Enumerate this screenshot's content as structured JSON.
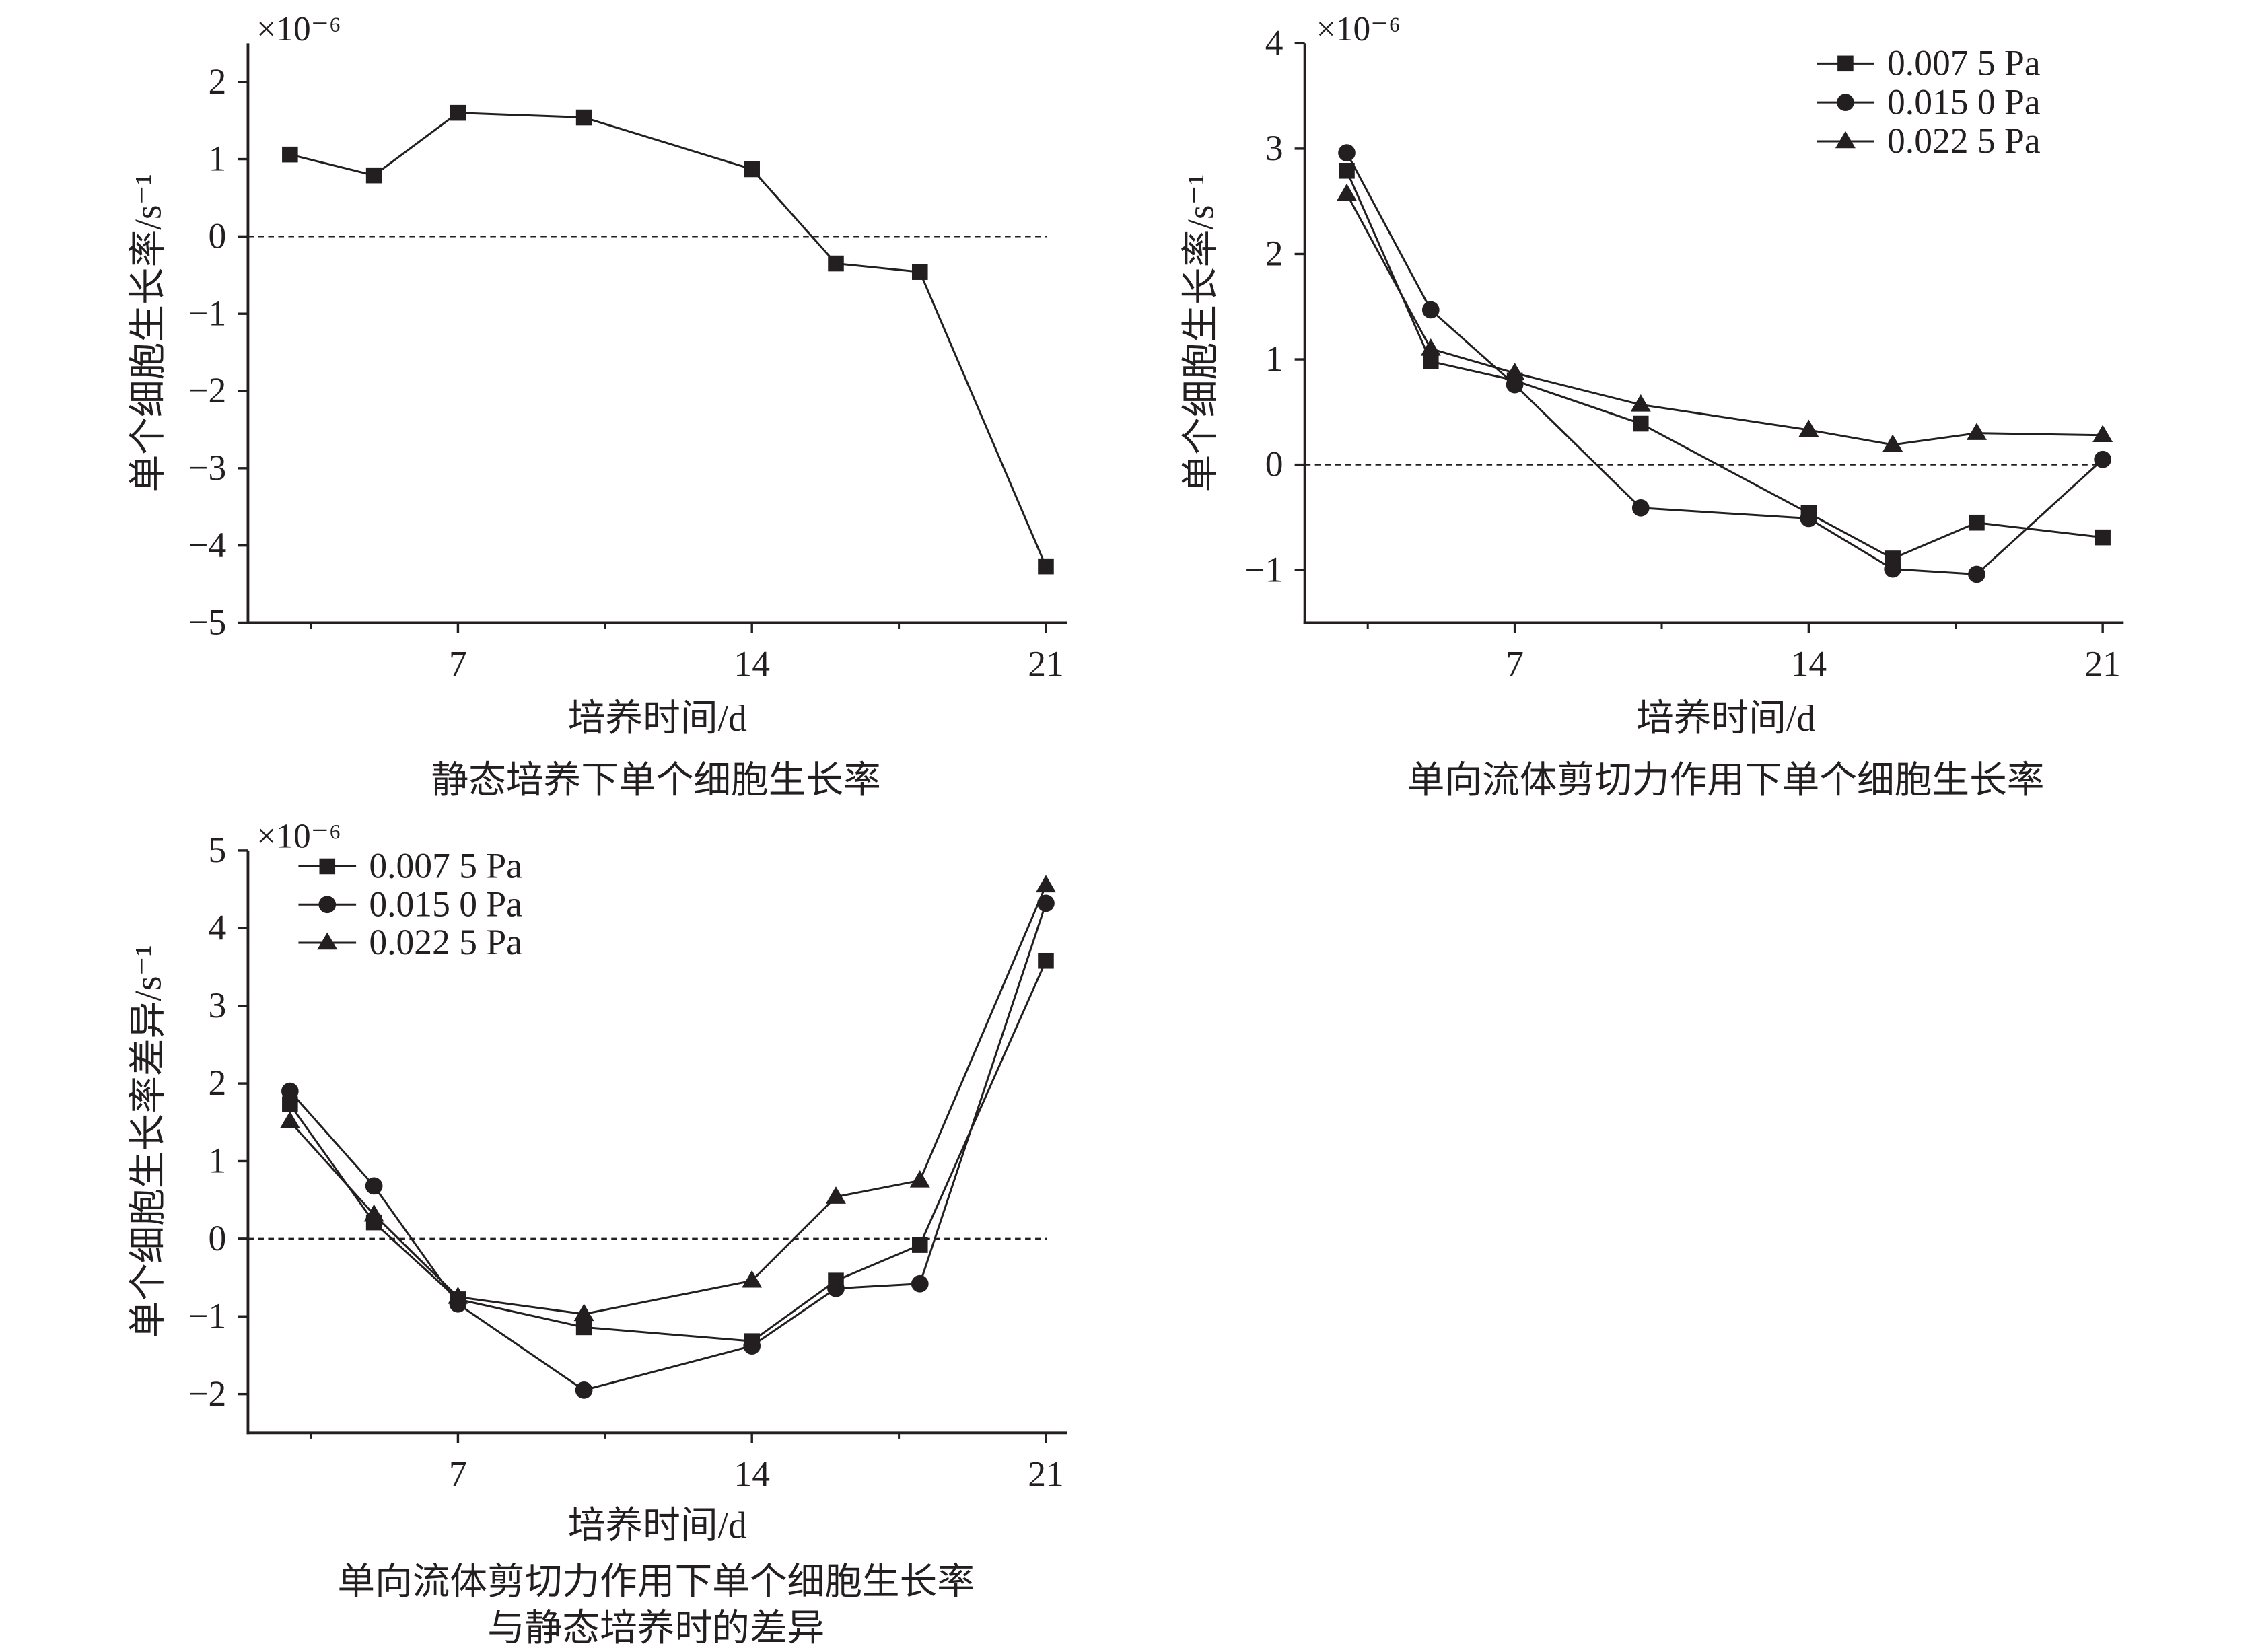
{
  "figure": {
    "ink_color": "#231f20",
    "background_color": "#ffffff"
  },
  "chart_data": [
    {
      "type": "line",
      "title": "静态培养下单个细胞生长率",
      "xlabel": "培养时间/d",
      "ylabel": "单个细胞生长率/s⁻¹",
      "y_multiplier": "×10⁻⁶",
      "xlim": [
        2,
        21.5
      ],
      "ylim": [
        -5,
        2.5
      ],
      "xticks": [
        7,
        14,
        21
      ],
      "x_minor_ticks": [
        3.5,
        10.5,
        17.5
      ],
      "yticks": [
        2,
        1,
        0,
        -1,
        -2,
        -3,
        -4,
        -5
      ],
      "ytick_labels": [
        "2",
        "1",
        "0",
        "−1",
        "−2",
        "−3",
        "−4",
        "−5"
      ],
      "reference_line_y": 0,
      "grid": false,
      "x": [
        3,
        5,
        7,
        10,
        14,
        16,
        18,
        21
      ],
      "series": [
        {
          "marker": "square",
          "values": [
            1.06,
            0.79,
            1.6,
            1.54,
            0.87,
            -0.35,
            -0.46,
            -4.27
          ]
        }
      ]
    },
    {
      "type": "line",
      "title": "单向流体剪切力作用下单个细胞生长率",
      "xlabel": "培养时间/d",
      "ylabel": "单个细胞生长率/s⁻¹",
      "y_multiplier": "×10⁻⁶",
      "xlim": [
        2,
        21.5
      ],
      "ylim": [
        -1.5,
        4
      ],
      "xticks": [
        7,
        14,
        21
      ],
      "x_minor_ticks": [
        3.5,
        10.5,
        17.5
      ],
      "yticks": [
        4,
        3,
        2,
        1,
        0,
        -1
      ],
      "ytick_labels": [
        "4",
        "3",
        "2",
        "1",
        "0",
        "−1"
      ],
      "reference_line_y": 0,
      "grid": false,
      "legend": "top-right",
      "x": [
        3,
        5,
        7,
        10,
        14,
        16,
        18,
        21
      ],
      "series": [
        {
          "name": "0.007 5 Pa",
          "marker": "square",
          "values": [
            2.79,
            0.98,
            0.8,
            0.39,
            -0.46,
            -0.89,
            -0.55,
            -0.69
          ]
        },
        {
          "name": "0.015 0 Pa",
          "marker": "circle",
          "values": [
            2.96,
            1.47,
            0.76,
            -0.41,
            -0.51,
            -0.99,
            -1.04,
            0.05
          ]
        },
        {
          "name": "0.022 5 Pa",
          "marker": "triangle",
          "values": [
            2.57,
            1.1,
            0.87,
            0.57,
            0.33,
            0.19,
            0.3,
            0.28
          ]
        }
      ]
    },
    {
      "type": "line",
      "title": [
        "单向流体剪切力作用下单个细胞生长率",
        "与静态培养时的差异"
      ],
      "xlabel": "培养时间/d",
      "ylabel": "单个细胞生长率差异/s⁻¹",
      "y_multiplier": "×10⁻⁶",
      "xlim": [
        2,
        21.5
      ],
      "ylim": [
        -2.5,
        5
      ],
      "xticks": [
        7,
        14,
        21
      ],
      "x_minor_ticks": [
        3.5,
        10.5,
        17.5
      ],
      "yticks": [
        5,
        4,
        3,
        2,
        1,
        0,
        -1,
        -2
      ],
      "ytick_labels": [
        "5",
        "4",
        "3",
        "2",
        "1",
        "0",
        "−1",
        "−2"
      ],
      "reference_line_y": 0,
      "grid": false,
      "legend": "top-left",
      "x": [
        3,
        5,
        7,
        10,
        14,
        16,
        18,
        21
      ],
      "series": [
        {
          "name": "0.007 5 Pa",
          "marker": "square",
          "values": [
            1.73,
            0.21,
            -0.78,
            -1.14,
            -1.32,
            -0.54,
            -0.08,
            3.58
          ]
        },
        {
          "name": "0.015 0 Pa",
          "marker": "circle",
          "values": [
            1.9,
            0.68,
            -0.84,
            -1.95,
            -1.38,
            -0.64,
            -0.58,
            4.32
          ]
        },
        {
          "name": "0.022 5 Pa",
          "marker": "triangle",
          "values": [
            1.51,
            0.31,
            -0.75,
            -0.97,
            -0.54,
            0.54,
            0.75,
            4.55
          ]
        }
      ]
    }
  ]
}
